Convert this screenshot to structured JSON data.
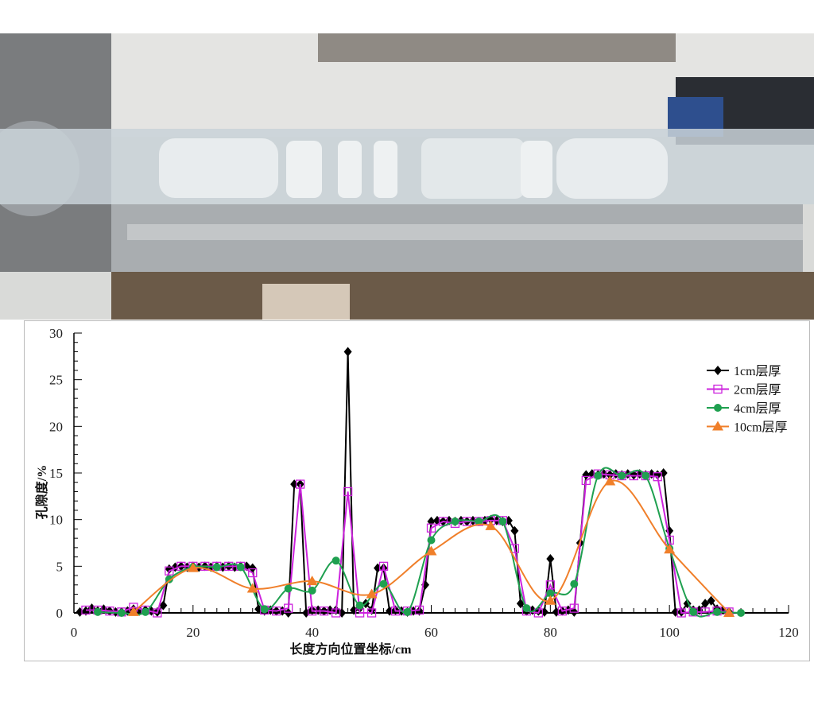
{
  "chart_data": {
    "type": "line",
    "title": "",
    "xlabel": "长度方向位置坐标/cm",
    "ylabel": "孔隙度/%",
    "xlim": [
      0,
      120
    ],
    "ylim": [
      0,
      30
    ],
    "xticks": [
      "0",
      "20",
      "40",
      "60",
      "80",
      "100",
      "120"
    ],
    "yticks": [
      "0",
      "5",
      "10",
      "15",
      "20",
      "25",
      "30"
    ],
    "grid": false,
    "legend_position": "top-right",
    "series": [
      {
        "name": "1cm层厚",
        "color": "#000000",
        "marker": "diamond",
        "smooth": false,
        "x": [
          1,
          2,
          3,
          4,
          5,
          6,
          7,
          8,
          9,
          10,
          11,
          12,
          13,
          14,
          15,
          16,
          17,
          18,
          19,
          20,
          21,
          22,
          23,
          24,
          25,
          26,
          27,
          28,
          29,
          30,
          31,
          32,
          33,
          34,
          35,
          36,
          37,
          38,
          39,
          40,
          41,
          42,
          43,
          44,
          45,
          46,
          47,
          48,
          49,
          50,
          51,
          52,
          53,
          54,
          55,
          56,
          57,
          58,
          59,
          60,
          61,
          62,
          63,
          64,
          65,
          66,
          67,
          68,
          69,
          70,
          71,
          72,
          73,
          74,
          75,
          76,
          77,
          78,
          79,
          80,
          81,
          82,
          83,
          84,
          85,
          86,
          87,
          88,
          89,
          90,
          91,
          92,
          93,
          94,
          95,
          96,
          97,
          98,
          99,
          100,
          101,
          102,
          103,
          104,
          105,
          106,
          107,
          108,
          109,
          110
        ],
        "y": [
          0.1,
          0.2,
          0.5,
          0.2,
          0.4,
          0.2,
          0.1,
          0.1,
          0.2,
          0.4,
          0.2,
          0.3,
          0.2,
          0.1,
          0.8,
          4.7,
          4.9,
          5,
          4.9,
          5,
          4.9,
          5,
          4.9,
          5,
          4.9,
          5,
          4.9,
          5,
          5,
          4.8,
          0.4,
          0.2,
          0.3,
          0.2,
          0.2,
          0,
          13.8,
          13.8,
          0,
          0.3,
          0.3,
          0.2,
          0.3,
          0.3,
          0,
          28,
          0.3,
          0.5,
          1,
          0.3,
          4.8,
          4.8,
          0.2,
          0.3,
          0.2,
          0.1,
          0.2,
          0.2,
          3,
          9.8,
          9.9,
          9.8,
          9.9,
          9.8,
          9.9,
          9.8,
          9.9,
          9.8,
          9.9,
          10,
          9.9,
          9.8,
          9.9,
          8.8,
          1,
          0.2,
          0.3,
          0.2,
          0.1,
          5.8,
          0.1,
          0.2,
          0.3,
          0.1,
          7.5,
          14.8,
          14.9,
          14.8,
          14.9,
          14.8,
          14.9,
          14.8,
          14.9,
          14.8,
          14.9,
          14.8,
          14.9,
          14.8,
          15,
          8.8,
          0.1,
          0.1,
          1,
          0.3,
          0.3,
          1,
          1.3,
          0.4,
          0.3,
          0.1
        ]
      },
      {
        "name": "2cm层厚",
        "color": "#cc22dd",
        "marker": "square-open",
        "smooth": false,
        "x": [
          2,
          4,
          6,
          8,
          10,
          12,
          14,
          16,
          18,
          20,
          22,
          24,
          26,
          28,
          30,
          32,
          34,
          36,
          38,
          40,
          42,
          44,
          46,
          48,
          50,
          52,
          54,
          56,
          58,
          60,
          62,
          64,
          66,
          68,
          70,
          72,
          74,
          76,
          78,
          80,
          82,
          84,
          86,
          88,
          90,
          92,
          94,
          96,
          98,
          100,
          102,
          104,
          106,
          108,
          110
        ],
        "y": [
          0.3,
          0.3,
          0.2,
          0.1,
          0.6,
          0.3,
          0,
          4.5,
          5,
          5,
          5,
          5,
          5,
          5,
          4.3,
          0.3,
          0.2,
          0.5,
          13.8,
          0.2,
          0.2,
          0,
          13,
          0,
          0,
          5,
          0.2,
          0.2,
          0.3,
          9.1,
          9.8,
          9.6,
          9.8,
          9.8,
          9.9,
          9.9,
          6.9,
          0.2,
          0,
          3,
          0.2,
          0.5,
          14.2,
          14.9,
          14.8,
          14.7,
          14.7,
          14.7,
          14.6,
          7.8,
          0,
          0.1,
          0.1,
          0.2,
          0.1
        ]
      },
      {
        "name": "4cm层厚",
        "color": "#1fa050",
        "marker": "circle",
        "smooth": true,
        "x": [
          4,
          8,
          12,
          16,
          20,
          24,
          28,
          32,
          36,
          40,
          44,
          48,
          52,
          56,
          60,
          64,
          68,
          72,
          76,
          80,
          84,
          88,
          92,
          96,
          100,
          104,
          108,
          112
        ],
        "y": [
          0.1,
          0,
          0.1,
          3.6,
          4.9,
          4.9,
          4.9,
          0.4,
          2.6,
          2.4,
          5.6,
          0.8,
          3.1,
          0.1,
          7.8,
          9.8,
          9.8,
          9.8,
          0.5,
          2.1,
          3.1,
          14.7,
          14.7,
          14.7,
          6.9,
          0.1,
          0.1,
          0
        ]
      },
      {
        "name": "10cm层厚",
        "color": "#f07f2a",
        "marker": "triangle",
        "smooth": true,
        "x": [
          10,
          20,
          30,
          40,
          50,
          60,
          70,
          80,
          90,
          100,
          110
        ],
        "y": [
          0.1,
          4.8,
          2.6,
          3.4,
          2,
          6.6,
          9.3,
          1.3,
          14.1,
          6.8,
          0
        ]
      }
    ]
  }
}
